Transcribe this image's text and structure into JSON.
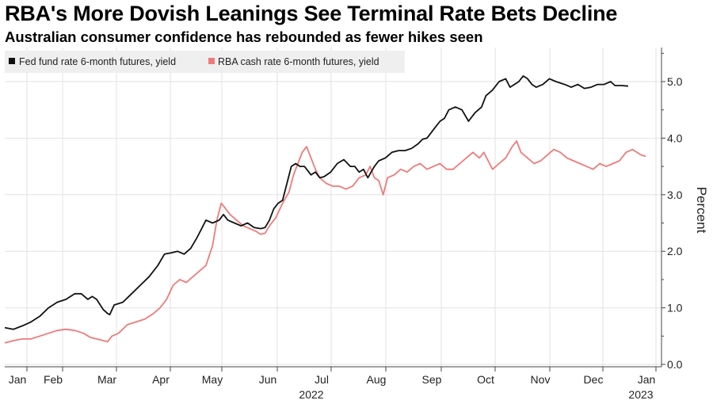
{
  "header": {
    "title": "RBA's More Dovish Leanings See Terminal Rate Bets Decline",
    "subtitle": "Australian consumer confidence has rebounded as fewer hikes seen"
  },
  "chart_data": {
    "type": "line",
    "ylabel": "Percent",
    "ylim": [
      0.0,
      5.5
    ],
    "yticks": [
      "0.0",
      "1.0",
      "2.0",
      "3.0",
      "4.0",
      "5.0"
    ],
    "xlabel_year_start": "2022",
    "xlabel_year_end": "2023",
    "months": [
      "Jan",
      "Feb",
      "Mar",
      "Apr",
      "May",
      "Jun",
      "Jul",
      "Aug",
      "Sep",
      "Oct",
      "Nov",
      "Dec",
      "Jan"
    ],
    "legend_position": "top-left",
    "grid": true,
    "colors": {
      "fed": "#111111",
      "rba": "#f07a7a",
      "grid": "#e2e2e2"
    },
    "series": [
      {
        "name": "Fed fund rate 6-month futures, yield",
        "key": "fed",
        "color": "#111111",
        "points": [
          [
            0.0,
            0.65
          ],
          [
            0.2,
            0.62
          ],
          [
            0.4,
            0.68
          ],
          [
            0.6,
            0.75
          ],
          [
            0.8,
            0.85
          ],
          [
            1.0,
            1.0
          ],
          [
            1.2,
            1.1
          ],
          [
            1.4,
            1.15
          ],
          [
            1.6,
            1.25
          ],
          [
            1.75,
            1.25
          ],
          [
            1.9,
            1.15
          ],
          [
            2.0,
            1.2
          ],
          [
            2.1,
            1.15
          ],
          [
            2.25,
            0.97
          ],
          [
            2.35,
            0.9
          ],
          [
            2.4,
            0.88
          ],
          [
            2.5,
            1.05
          ],
          [
            2.7,
            1.1
          ],
          [
            2.9,
            1.25
          ],
          [
            3.1,
            1.4
          ],
          [
            3.3,
            1.55
          ],
          [
            3.5,
            1.75
          ],
          [
            3.65,
            1.95
          ],
          [
            3.8,
            1.97
          ],
          [
            3.95,
            2.0
          ],
          [
            4.1,
            1.95
          ],
          [
            4.25,
            2.05
          ],
          [
            4.4,
            2.25
          ],
          [
            4.6,
            2.55
          ],
          [
            4.75,
            2.5
          ],
          [
            4.9,
            2.55
          ],
          [
            5.0,
            2.65
          ],
          [
            5.1,
            2.55
          ],
          [
            5.25,
            2.5
          ],
          [
            5.4,
            2.45
          ],
          [
            5.55,
            2.5
          ],
          [
            5.7,
            2.42
          ],
          [
            5.85,
            2.4
          ],
          [
            5.95,
            2.42
          ],
          [
            6.05,
            2.55
          ],
          [
            6.15,
            2.75
          ],
          [
            6.25,
            2.85
          ],
          [
            6.35,
            2.9
          ],
          [
            6.45,
            3.2
          ],
          [
            6.55,
            3.5
          ],
          [
            6.65,
            3.55
          ],
          [
            6.75,
            3.5
          ],
          [
            6.85,
            3.5
          ],
          [
            7.0,
            3.35
          ],
          [
            7.1,
            3.4
          ],
          [
            7.2,
            3.3
          ],
          [
            7.3,
            3.32
          ],
          [
            7.45,
            3.4
          ],
          [
            7.6,
            3.55
          ],
          [
            7.75,
            3.62
          ],
          [
            7.9,
            3.5
          ],
          [
            8.0,
            3.5
          ],
          [
            8.1,
            3.4
          ],
          [
            8.2,
            3.45
          ],
          [
            8.3,
            3.3
          ],
          [
            8.45,
            3.5
          ],
          [
            8.55,
            3.6
          ],
          [
            8.7,
            3.65
          ],
          [
            8.85,
            3.75
          ],
          [
            9.0,
            3.78
          ],
          [
            9.15,
            3.78
          ],
          [
            9.3,
            3.82
          ],
          [
            9.45,
            3.9
          ],
          [
            9.55,
            3.98
          ],
          [
            9.65,
            4.0
          ],
          [
            9.75,
            4.1
          ],
          [
            9.85,
            4.2
          ],
          [
            9.95,
            4.3
          ],
          [
            10.05,
            4.35
          ],
          [
            10.15,
            4.5
          ],
          [
            10.3,
            4.55
          ],
          [
            10.45,
            4.5
          ],
          [
            10.6,
            4.3
          ],
          [
            10.75,
            4.45
          ],
          [
            10.9,
            4.55
          ],
          [
            11.0,
            4.75
          ],
          [
            11.15,
            4.85
          ],
          [
            11.3,
            5.0
          ],
          [
            11.45,
            5.05
          ],
          [
            11.55,
            4.9
          ],
          [
            11.65,
            4.95
          ],
          [
            11.75,
            5.0
          ],
          [
            11.85,
            5.1
          ],
          [
            11.95,
            5.05
          ],
          [
            12.05,
            4.95
          ],
          [
            12.15,
            4.9
          ],
          [
            12.3,
            4.95
          ],
          [
            12.45,
            5.05
          ],
          [
            12.6,
            5.0
          ],
          [
            12.8,
            4.95
          ],
          [
            12.95,
            4.9
          ],
          [
            13.1,
            4.95
          ],
          [
            13.25,
            4.88
          ],
          [
            13.4,
            4.9
          ],
          [
            13.55,
            4.95
          ],
          [
            13.7,
            4.95
          ],
          [
            13.85,
            5.0
          ],
          [
            13.95,
            4.93
          ],
          [
            14.1,
            4.93
          ],
          [
            14.25,
            4.92
          ]
        ]
      },
      {
        "name": "RBA cash rate 6-month futures, yield",
        "key": "rba",
        "color": "#f07a7a",
        "points": [
          [
            0.0,
            0.38
          ],
          [
            0.2,
            0.42
          ],
          [
            0.4,
            0.45
          ],
          [
            0.6,
            0.45
          ],
          [
            0.8,
            0.5
          ],
          [
            1.0,
            0.55
          ],
          [
            1.2,
            0.6
          ],
          [
            1.4,
            0.62
          ],
          [
            1.6,
            0.6
          ],
          [
            1.8,
            0.55
          ],
          [
            1.95,
            0.48
          ],
          [
            2.1,
            0.45
          ],
          [
            2.2,
            0.43
          ],
          [
            2.35,
            0.4
          ],
          [
            2.45,
            0.5
          ],
          [
            2.6,
            0.55
          ],
          [
            2.8,
            0.7
          ],
          [
            3.0,
            0.75
          ],
          [
            3.2,
            0.8
          ],
          [
            3.4,
            0.9
          ],
          [
            3.55,
            1.0
          ],
          [
            3.7,
            1.15
          ],
          [
            3.85,
            1.4
          ],
          [
            4.0,
            1.5
          ],
          [
            4.15,
            1.45
          ],
          [
            4.3,
            1.55
          ],
          [
            4.45,
            1.65
          ],
          [
            4.6,
            1.75
          ],
          [
            4.75,
            2.1
          ],
          [
            4.85,
            2.55
          ],
          [
            4.95,
            2.85
          ],
          [
            5.05,
            2.75
          ],
          [
            5.15,
            2.65
          ],
          [
            5.3,
            2.55
          ],
          [
            5.45,
            2.45
          ],
          [
            5.6,
            2.4
          ],
          [
            5.75,
            2.35
          ],
          [
            5.85,
            2.3
          ],
          [
            5.95,
            2.32
          ],
          [
            6.05,
            2.45
          ],
          [
            6.2,
            2.6
          ],
          [
            6.35,
            2.85
          ],
          [
            6.5,
            3.05
          ],
          [
            6.6,
            3.35
          ],
          [
            6.7,
            3.55
          ],
          [
            6.8,
            3.75
          ],
          [
            6.9,
            3.85
          ],
          [
            7.0,
            3.65
          ],
          [
            7.1,
            3.45
          ],
          [
            7.2,
            3.3
          ],
          [
            7.35,
            3.2
          ],
          [
            7.5,
            3.15
          ],
          [
            7.65,
            3.15
          ],
          [
            7.8,
            3.1
          ],
          [
            7.95,
            3.15
          ],
          [
            8.1,
            3.3
          ],
          [
            8.25,
            3.35
          ],
          [
            8.35,
            3.5
          ],
          [
            8.45,
            3.3
          ],
          [
            8.55,
            3.25
          ],
          [
            8.65,
            3.0
          ],
          [
            8.75,
            3.3
          ],
          [
            8.9,
            3.35
          ],
          [
            9.05,
            3.45
          ],
          [
            9.2,
            3.4
          ],
          [
            9.35,
            3.5
          ],
          [
            9.5,
            3.55
          ],
          [
            9.65,
            3.45
          ],
          [
            9.8,
            3.5
          ],
          [
            9.95,
            3.55
          ],
          [
            10.1,
            3.45
          ],
          [
            10.25,
            3.45
          ],
          [
            10.4,
            3.55
          ],
          [
            10.55,
            3.65
          ],
          [
            10.7,
            3.75
          ],
          [
            10.85,
            3.65
          ],
          [
            10.95,
            3.75
          ],
          [
            11.05,
            3.6
          ],
          [
            11.15,
            3.45
          ],
          [
            11.3,
            3.55
          ],
          [
            11.45,
            3.65
          ],
          [
            11.6,
            3.85
          ],
          [
            11.7,
            3.95
          ],
          [
            11.8,
            3.75
          ],
          [
            11.95,
            3.65
          ],
          [
            12.1,
            3.55
          ],
          [
            12.25,
            3.6
          ],
          [
            12.4,
            3.7
          ],
          [
            12.55,
            3.8
          ],
          [
            12.7,
            3.75
          ],
          [
            12.85,
            3.65
          ],
          [
            13.0,
            3.6
          ],
          [
            13.15,
            3.55
          ],
          [
            13.3,
            3.5
          ],
          [
            13.45,
            3.45
          ],
          [
            13.6,
            3.55
          ],
          [
            13.75,
            3.5
          ],
          [
            13.9,
            3.55
          ],
          [
            14.05,
            3.6
          ],
          [
            14.2,
            3.75
          ],
          [
            14.35,
            3.8
          ],
          [
            14.45,
            3.75
          ],
          [
            14.55,
            3.7
          ],
          [
            14.65,
            3.68
          ]
        ]
      }
    ]
  }
}
